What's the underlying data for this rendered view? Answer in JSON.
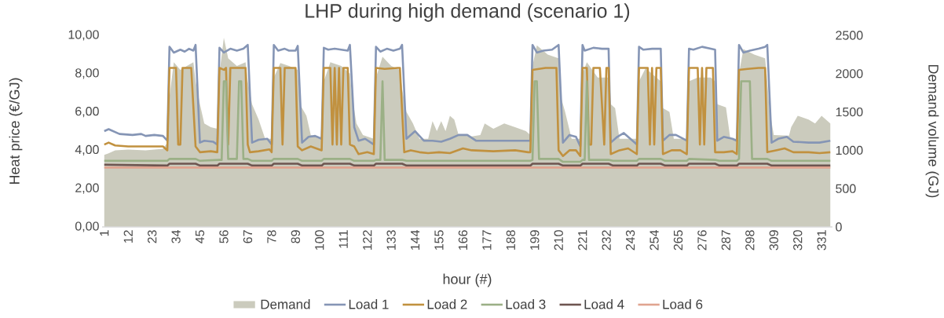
{
  "chart_data": {
    "type": "line",
    "title": "LHP during high demand (scenario 1)",
    "xlabel": "hour (#)",
    "ylabel": "Heat price (€/GJ)",
    "y2label": "Demand volume (GJ)",
    "xlim": [
      0,
      336
    ],
    "xticks": [
      1,
      12,
      23,
      34,
      45,
      56,
      67,
      78,
      89,
      100,
      111,
      122,
      133,
      144,
      155,
      166,
      177,
      188,
      199,
      210,
      221,
      232,
      243,
      254,
      265,
      276,
      287,
      298,
      309,
      320,
      331
    ],
    "ylim": [
      0,
      10
    ],
    "yticks": [
      {
        "value": 0,
        "label": "0,00"
      },
      {
        "value": 2,
        "label": "2,00"
      },
      {
        "value": 4,
        "label": "4,00"
      },
      {
        "value": 6,
        "label": "6,00"
      },
      {
        "value": 8,
        "label": "8,00"
      },
      {
        "value": 10,
        "label": "10,00"
      }
    ],
    "y2lim": [
      0,
      2500
    ],
    "y2ticks": [
      0,
      500,
      1000,
      1500,
      2000,
      2500
    ],
    "legend": "bottom",
    "line_style": "solid",
    "series": [
      {
        "name": "Demand",
        "type": "area",
        "axis": "y2",
        "color": "#cbcbbd",
        "x": [
          1,
          3,
          6,
          12,
          20,
          28,
          30,
          31,
          33,
          36,
          39,
          42,
          43,
          45,
          47,
          50,
          53,
          54,
          56,
          58,
          62,
          66,
          67,
          69,
          72,
          75,
          78,
          79,
          82,
          86,
          90,
          91,
          94,
          96,
          101,
          102,
          105,
          110,
          114,
          115,
          117,
          120,
          125,
          126,
          129,
          133,
          137,
          138,
          140,
          143,
          146,
          150,
          152,
          154,
          156,
          158,
          160,
          162,
          164,
          170,
          174,
          176,
          180,
          185,
          190,
          195,
          197,
          198,
          200,
          205,
          210,
          211,
          213,
          216,
          220,
          221,
          223,
          228,
          233,
          234,
          236,
          238,
          246,
          247,
          250,
          255,
          257,
          258,
          261,
          263,
          269,
          270,
          274,
          280,
          282,
          283,
          287,
          289,
          292,
          293,
          295,
          300,
          305,
          306,
          307,
          309,
          316,
          317,
          320,
          325,
          328,
          331,
          335
        ],
        "values": [
          940,
          960,
          1000,
          1010,
          1000,
          1020,
          1100,
          1700,
          2150,
          2050,
          2100,
          2150,
          1900,
          1600,
          1350,
          1300,
          1280,
          2000,
          2470,
          2200,
          2100,
          2150,
          1900,
          1600,
          1400,
          1150,
          1150,
          1950,
          2140,
          2100,
          2050,
          1600,
          1450,
          1200,
          1150,
          1900,
          2150,
          2100,
          2000,
          1700,
          1350,
          1200,
          1150,
          1950,
          2220,
          2100,
          2050,
          1800,
          1500,
          1350,
          1150,
          1150,
          1380,
          1250,
          1380,
          1250,
          1450,
          1400,
          1200,
          1180,
          1200,
          1350,
          1280,
          1350,
          1300,
          1250,
          1200,
          2100,
          2370,
          2250,
          2200,
          1700,
          1500,
          1150,
          1150,
          2000,
          2150,
          1950,
          1950,
          1600,
          1550,
          1150,
          1150,
          1900,
          2070,
          1950,
          1900,
          1550,
          1500,
          1150,
          1150,
          1900,
          1950,
          1950,
          1900,
          1600,
          1560,
          1150,
          1150,
          2000,
          2320,
          2250,
          2200,
          1900,
          1530,
          1200,
          1190,
          1300,
          1450,
          1400,
          1350,
          1450,
          1350
        ]
      },
      {
        "name": "Load 1",
        "color": "#8595b5",
        "x": [
          1,
          3,
          5,
          8,
          14,
          18,
          20,
          24,
          28,
          30,
          31,
          33,
          36,
          38,
          40,
          42,
          43,
          45,
          47,
          51,
          53,
          54,
          56,
          59,
          62,
          65,
          67,
          69,
          72,
          76,
          78,
          79,
          81,
          84,
          86,
          89,
          90,
          92,
          95,
          98,
          101,
          102,
          104,
          107,
          110,
          113,
          114,
          116,
          118,
          121,
          125,
          126,
          128,
          131,
          134,
          137,
          138,
          140,
          144,
          148,
          152,
          156,
          160,
          164,
          168,
          172,
          180,
          188,
          197,
          198,
          200,
          203,
          207,
          210,
          212,
          215,
          218,
          220,
          221,
          222,
          226,
          230,
          233,
          234,
          237,
          240,
          243,
          246,
          247,
          249,
          253,
          257,
          258,
          261,
          264,
          269,
          270,
          272,
          276,
          280,
          282,
          283,
          286,
          290,
          292,
          293,
          295,
          298,
          302,
          305,
          306,
          308,
          311,
          315,
          318,
          325,
          330,
          335
        ],
        "values": [
          5.0,
          5.1,
          5.0,
          4.85,
          4.8,
          4.85,
          4.75,
          4.8,
          4.75,
          4.5,
          9.4,
          9.1,
          9.25,
          9.15,
          9.3,
          9.2,
          9.5,
          4.4,
          4.5,
          4.45,
          4.3,
          9.35,
          9.1,
          9.3,
          9.2,
          9.3,
          9.5,
          4.4,
          4.55,
          4.6,
          4.3,
          9.5,
          9.2,
          9.3,
          9.2,
          9.2,
          9.45,
          4.4,
          4.7,
          4.75,
          4.6,
          9.35,
          9.25,
          9.3,
          9.25,
          9.2,
          9.5,
          5.2,
          4.5,
          4.6,
          4.3,
          9.4,
          9.15,
          9.3,
          9.2,
          9.3,
          9.5,
          4.6,
          5.0,
          4.5,
          4.5,
          4.45,
          4.6,
          4.8,
          4.8,
          4.5,
          4.5,
          4.5,
          4.5,
          9.5,
          9.1,
          9.2,
          9.25,
          9.5,
          4.4,
          4.8,
          4.7,
          4.2,
          9.5,
          9.2,
          9.35,
          9.3,
          9.3,
          4.4,
          4.7,
          4.9,
          4.6,
          4.3,
          9.4,
          9.25,
          9.3,
          9.3,
          4.5,
          4.8,
          4.8,
          4.5,
          9.3,
          9.25,
          9.4,
          9.3,
          9.25,
          4.5,
          4.7,
          4.6,
          4.5,
          9.5,
          9.1,
          9.2,
          9.3,
          9.4,
          9.5,
          4.4,
          4.6,
          4.7,
          4.45,
          4.4,
          4.4,
          4.5
        ]
      },
      {
        "name": "Load 2",
        "color": "#c1913f",
        "x": [
          1,
          3,
          6,
          12,
          20,
          28,
          30,
          31,
          34,
          35,
          36,
          37,
          41,
          43,
          45,
          50,
          53,
          54,
          56,
          57,
          58,
          59,
          63,
          66,
          67,
          68,
          72,
          77,
          78,
          79,
          82,
          83,
          84,
          88,
          89,
          90,
          92,
          96,
          101,
          102,
          105,
          106,
          107,
          108,
          109,
          110,
          111,
          113,
          114,
          116,
          118,
          122,
          125,
          126,
          130,
          136,
          137,
          139,
          142,
          146,
          150,
          155,
          160,
          166,
          170,
          180,
          190,
          196,
          197,
          198,
          204,
          209,
          210,
          212,
          215,
          218,
          220,
          221,
          223,
          224,
          225,
          226,
          229,
          231,
          232,
          233,
          234,
          238,
          242,
          246,
          247,
          251,
          252,
          253,
          254,
          255,
          257,
          258,
          262,
          266,
          269,
          270,
          274,
          275,
          276,
          277,
          278,
          281,
          282,
          286,
          290,
          292,
          293,
          297,
          302,
          305,
          306,
          310,
          314,
          318,
          325,
          330,
          335
        ],
        "values": [
          4.3,
          4.4,
          4.25,
          4.2,
          4.2,
          4.2,
          4.0,
          8.3,
          8.3,
          4.3,
          4.3,
          8.3,
          8.3,
          4.2,
          3.9,
          3.95,
          3.9,
          8.3,
          8.2,
          8.3,
          4.3,
          8.3,
          8.3,
          8.3,
          4.3,
          3.9,
          3.95,
          4.05,
          3.9,
          8.3,
          8.3,
          4.3,
          8.3,
          8.3,
          8.3,
          4.2,
          4.0,
          4.2,
          4.0,
          8.3,
          8.3,
          4.3,
          8.3,
          4.3,
          8.3,
          4.3,
          8.3,
          8.3,
          4.3,
          4.2,
          3.8,
          3.9,
          3.8,
          8.3,
          8.25,
          8.3,
          8.3,
          3.9,
          4.0,
          3.9,
          3.85,
          3.9,
          3.85,
          4.1,
          4.0,
          3.95,
          4.0,
          3.9,
          3.9,
          8.2,
          8.3,
          8.3,
          4.0,
          3.7,
          4.0,
          4.0,
          3.7,
          8.3,
          8.3,
          4.3,
          4.3,
          8.3,
          8.3,
          4.3,
          8.3,
          8.3,
          3.8,
          4.0,
          4.1,
          3.8,
          8.3,
          8.3,
          4.3,
          8.3,
          4.3,
          8.3,
          8.3,
          3.8,
          4.0,
          4.0,
          3.8,
          8.3,
          8.3,
          4.3,
          8.3,
          4.3,
          8.3,
          8.3,
          3.9,
          3.9,
          3.95,
          3.8,
          8.2,
          8.25,
          8.3,
          8.3,
          3.9,
          4.0,
          4.1,
          3.9,
          3.9,
          3.85,
          3.9
        ]
      },
      {
        "name": "Load 3",
        "color": "#9bb086",
        "x": [
          1,
          30,
          31,
          43,
          45,
          54,
          55,
          56,
          57,
          58,
          62,
          63,
          64,
          65,
          67,
          69,
          78,
          79,
          90,
          92,
          101,
          102,
          114,
          116,
          125,
          126,
          128,
          129,
          130,
          138,
          140,
          197,
          198,
          199,
          200,
          201,
          210,
          212,
          220,
          221,
          222,
          223,
          224,
          233,
          235,
          246,
          247,
          257,
          259,
          269,
          270,
          282,
          284,
          292,
          293,
          294,
          298,
          299,
          306,
          308,
          335
        ],
        "values": [
          3.45,
          3.45,
          3.55,
          3.55,
          3.45,
          3.5,
          3.5,
          7.6,
          7.6,
          3.55,
          3.55,
          7.6,
          7.6,
          3.55,
          3.55,
          3.45,
          3.45,
          3.55,
          3.55,
          3.45,
          3.45,
          3.55,
          3.55,
          3.45,
          3.45,
          3.5,
          3.5,
          7.6,
          3.5,
          3.5,
          3.45,
          3.45,
          3.5,
          7.6,
          7.6,
          3.55,
          3.55,
          3.4,
          3.4,
          3.5,
          3.5,
          7.6,
          3.5,
          3.5,
          3.45,
          3.45,
          3.55,
          3.55,
          3.45,
          3.45,
          3.55,
          3.5,
          3.45,
          3.45,
          3.55,
          7.6,
          7.6,
          3.55,
          3.55,
          3.45,
          3.45
        ]
      },
      {
        "name": "Load 4",
        "color": "#6e5550",
        "x": [
          1,
          30,
          31,
          43,
          45,
          53,
          54,
          67,
          69,
          78,
          79,
          90,
          92,
          101,
          102,
          114,
          116,
          125,
          126,
          138,
          140,
          197,
          198,
          210,
          212,
          220,
          221,
          233,
          235,
          246,
          247,
          257,
          259,
          269,
          270,
          282,
          284,
          292,
          293,
          306,
          308,
          335
        ],
        "values": [
          3.25,
          3.2,
          3.3,
          3.3,
          3.2,
          3.2,
          3.3,
          3.3,
          3.2,
          3.2,
          3.3,
          3.3,
          3.2,
          3.2,
          3.3,
          3.3,
          3.2,
          3.2,
          3.3,
          3.3,
          3.2,
          3.2,
          3.3,
          3.3,
          3.2,
          3.2,
          3.3,
          3.3,
          3.2,
          3.2,
          3.3,
          3.3,
          3.2,
          3.2,
          3.3,
          3.3,
          3.2,
          3.2,
          3.3,
          3.3,
          3.2,
          3.2
        ]
      },
      {
        "name": "Load 6",
        "color": "#e0a490",
        "x": [
          1,
          335
        ],
        "values": [
          3.1,
          3.1
        ]
      }
    ]
  }
}
